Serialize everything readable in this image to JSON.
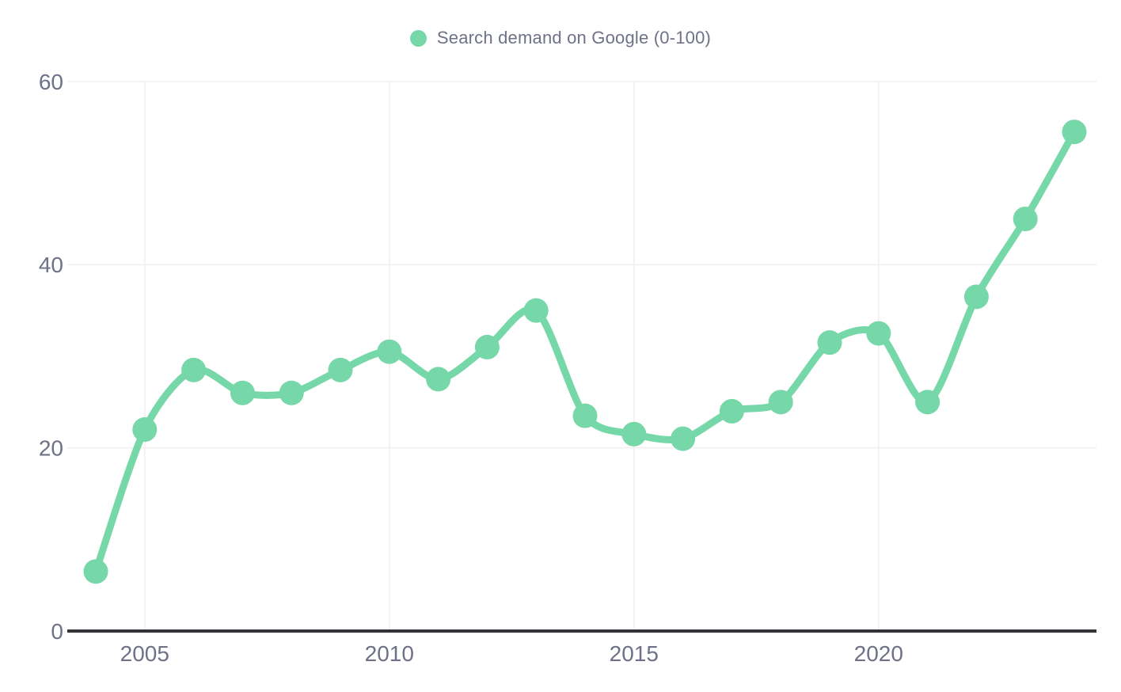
{
  "legend": {
    "label": "Search demand on Google (0-100)"
  },
  "colors": {
    "series": "#76d7a8",
    "axis_line": "#333338",
    "grid": "#efefef",
    "text": "#6e7187",
    "background": "#ffffff"
  },
  "chart_data": {
    "type": "line",
    "title": "",
    "xlabel": "",
    "ylabel": "",
    "x": [
      2004,
      2005,
      2006,
      2007,
      2008,
      2009,
      2010,
      2011,
      2012,
      2013,
      2014,
      2015,
      2016,
      2017,
      2018,
      2019,
      2020,
      2021,
      2022,
      2023,
      2024
    ],
    "series": [
      {
        "name": "Search demand on Google (0-100)",
        "values": [
          6.5,
          22,
          28.5,
          26,
          26,
          28.5,
          30.5,
          27.5,
          31,
          35,
          23.5,
          21.5,
          21,
          24,
          25,
          31.5,
          32.5,
          25,
          36.5,
          45,
          54.5
        ]
      }
    ],
    "ylim": [
      0,
      60
    ],
    "yticks": [
      0,
      20,
      40,
      60
    ],
    "xticks": [
      2005,
      2010,
      2015,
      2020
    ],
    "grid": true,
    "legend_position": "top-center",
    "marker": "circle",
    "smooth": true
  }
}
